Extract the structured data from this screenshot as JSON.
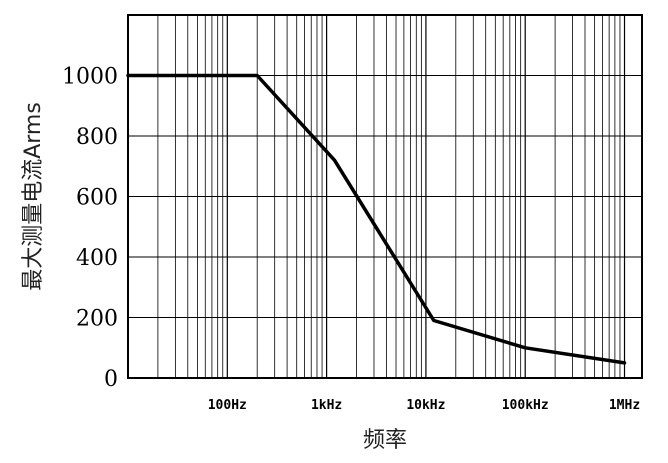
{
  "chart_data": {
    "type": "line",
    "xlabel": "频率",
    "ylabel": "最大测量电流Arms",
    "x_scale": "log",
    "xlim": [
      10,
      1500000
    ],
    "ylim": [
      0,
      1200
    ],
    "grid": true,
    "y_ticks": [
      0,
      200,
      400,
      600,
      800,
      1000
    ],
    "y_tick_labels": [
      "0",
      "200",
      "400",
      "600",
      "800",
      "1000"
    ],
    "x_ticks": [
      100,
      1000,
      10000,
      100000,
      1000000
    ],
    "x_tick_labels": [
      "100Hz",
      "1kHz",
      "10kHz",
      "100kHz",
      "1MHz"
    ],
    "series": [
      {
        "x": [
          10,
          200,
          1200,
          12000,
          100000,
          1000000
        ],
        "y": [
          1000,
          1000,
          720,
          190,
          100,
          50
        ]
      }
    ]
  }
}
